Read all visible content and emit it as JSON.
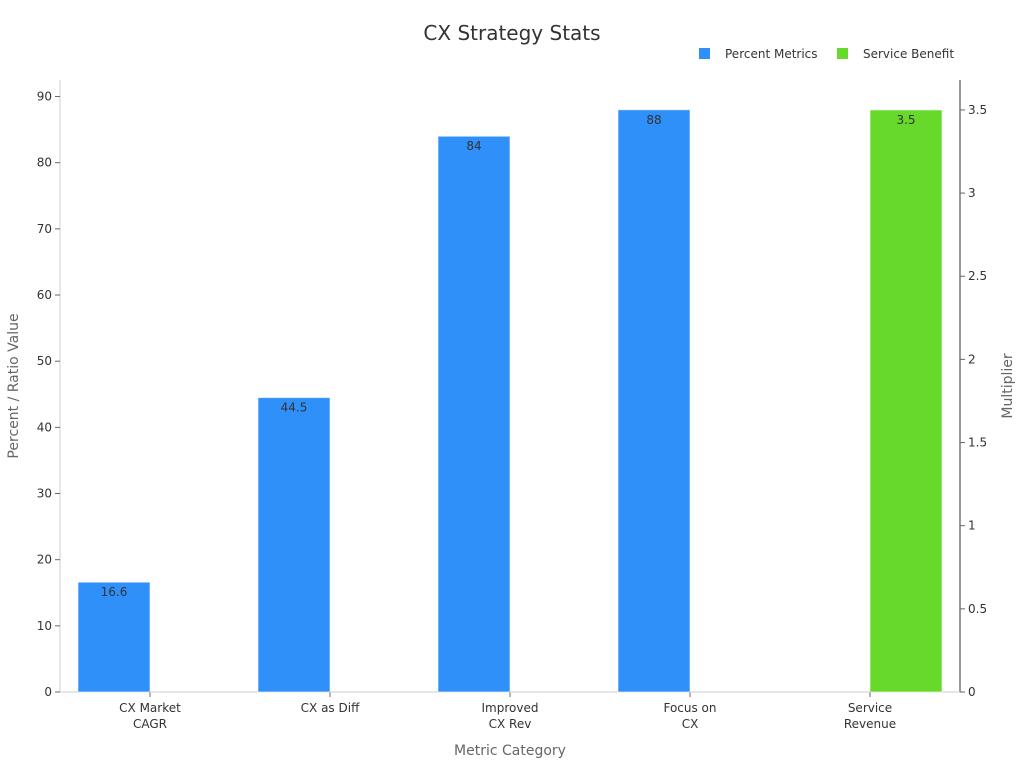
{
  "chart_data": {
    "type": "bar",
    "title": "CX Strategy Stats",
    "xlabel": "Metric Category",
    "ylabel": "Percent / Ratio Value",
    "y2label": "Multiplier",
    "categories": [
      [
        "CX Market",
        "CAGR"
      ],
      [
        "CX as Diff"
      ],
      [
        "Improved",
        "CX Rev"
      ],
      [
        "Focus on",
        "CX"
      ],
      [
        "Service",
        "Revenue"
      ]
    ],
    "series": [
      {
        "name": "Percent Metrics",
        "axis": "left",
        "color": "#2f90f9",
        "values": [
          16.6,
          44.5,
          84,
          88,
          null
        ],
        "labels": [
          "16.6",
          "44.5",
          "84",
          "88",
          ""
        ]
      },
      {
        "name": "Service Benefit",
        "axis": "right",
        "color": "#66d92a",
        "values": [
          null,
          null,
          null,
          null,
          3.5
        ],
        "labels": [
          "",
          "",
          "",
          "",
          "3.5"
        ]
      }
    ],
    "ylim": [
      0,
      92.5
    ],
    "yticks": [
      "0",
      "10",
      "20",
      "30",
      "40",
      "50",
      "60",
      "70",
      "80",
      "90"
    ],
    "y2lim": [
      0,
      3.68
    ],
    "y2ticks": [
      "0",
      "0.5",
      "1",
      "1.5",
      "2",
      "2.5",
      "3",
      "3.5"
    ],
    "grid": false,
    "legend_position": "top-right"
  }
}
